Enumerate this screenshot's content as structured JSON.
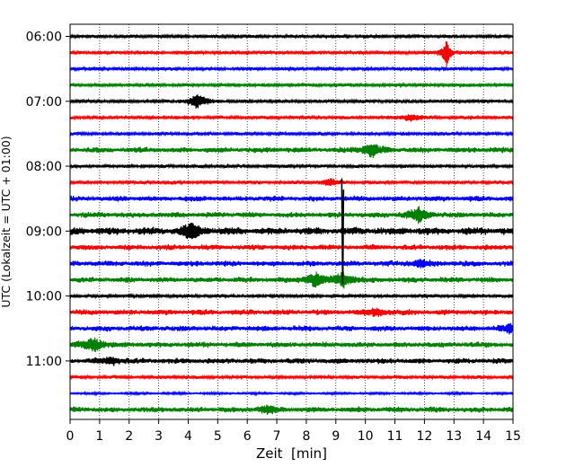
{
  "chart_data": {
    "type": "line",
    "title": "",
    "xlabel": "Zeit  [min]",
    "ylabel": "UTC (Lokalzeit = UTC + 01:00)",
    "xlim": [
      0,
      15
    ],
    "x_ticks": [
      "0",
      "1",
      "2",
      "3",
      "4",
      "5",
      "6",
      "7",
      "8",
      "9",
      "10",
      "11",
      "12",
      "13",
      "14",
      "15"
    ],
    "y_tick_labels": [
      "06:00",
      "07:00",
      "08:00",
      "09:00",
      "10:00",
      "11:00"
    ],
    "vertical_grid": true,
    "grid_style": "dotted",
    "trace_colors": [
      "#000000",
      "#ff0000",
      "#0000ff",
      "#008000"
    ],
    "traces": [
      {
        "start": "06:00",
        "color": "#000000",
        "activity": "low"
      },
      {
        "start": "06:15",
        "color": "#ff0000",
        "activity": "low",
        "events": [
          {
            "minute": 12.75,
            "amplitude": "large"
          }
        ]
      },
      {
        "start": "06:30",
        "color": "#0000ff",
        "activity": "low"
      },
      {
        "start": "06:45",
        "color": "#008000",
        "activity": "low"
      },
      {
        "start": "07:00",
        "color": "#000000",
        "activity": "low",
        "events": [
          {
            "minute": 4.3,
            "amplitude": "medium"
          }
        ]
      },
      {
        "start": "07:15",
        "color": "#ff0000",
        "activity": "low",
        "events": [
          {
            "minute": 11.5,
            "amplitude": "small"
          }
        ]
      },
      {
        "start": "07:30",
        "color": "#0000ff",
        "activity": "low"
      },
      {
        "start": "07:45",
        "color": "#008000",
        "activity": "medium",
        "events": [
          {
            "minute": 10.2,
            "amplitude": "medium"
          }
        ]
      },
      {
        "start": "08:00",
        "color": "#000000",
        "activity": "low"
      },
      {
        "start": "08:15",
        "color": "#ff0000",
        "activity": "low",
        "events": [
          {
            "minute": 8.8,
            "amplitude": "small"
          }
        ]
      },
      {
        "start": "08:30",
        "color": "#0000ff",
        "activity": "medium"
      },
      {
        "start": "08:45",
        "color": "#008000",
        "activity": "medium",
        "events": [
          {
            "minute": 11.8,
            "amplitude": "medium"
          }
        ]
      },
      {
        "start": "09:00",
        "color": "#000000",
        "activity": "high",
        "events": [
          {
            "minute": 4.1,
            "amplitude": "medium"
          }
        ]
      },
      {
        "start": "09:15",
        "color": "#ff0000",
        "activity": "medium"
      },
      {
        "start": "09:30",
        "color": "#0000ff",
        "activity": "medium",
        "events": [
          {
            "minute": 11.8,
            "amplitude": "small"
          }
        ]
      },
      {
        "start": "09:45",
        "color": "#008000",
        "activity": "medium",
        "events": [
          {
            "minute": 8.3,
            "amplitude": "medium"
          },
          {
            "minute": 9.25,
            "amplitude": "medium"
          }
        ]
      },
      {
        "start": "10:00",
        "color": "#000000",
        "activity": "low"
      },
      {
        "start": "10:15",
        "color": "#ff0000",
        "activity": "medium",
        "events": [
          {
            "minute": 10.4,
            "amplitude": "small"
          }
        ]
      },
      {
        "start": "10:30",
        "color": "#0000ff",
        "activity": "medium",
        "events": [
          {
            "minute": 14.9,
            "amplitude": "small"
          }
        ]
      },
      {
        "start": "10:45",
        "color": "#008000",
        "activity": "medium",
        "events": [
          {
            "minute": 0.8,
            "amplitude": "medium"
          }
        ]
      },
      {
        "start": "11:00",
        "color": "#000000",
        "activity": "medium",
        "events": [
          {
            "minute": 1.45,
            "amplitude": "small"
          }
        ]
      },
      {
        "start": "11:15",
        "color": "#ff0000",
        "activity": "low"
      },
      {
        "start": "11:30",
        "color": "#0000ff",
        "activity": "very-low"
      },
      {
        "start": "11:45",
        "color": "#008000",
        "activity": "medium",
        "events": [
          {
            "minute": 6.7,
            "amplitude": "small"
          }
        ]
      }
    ],
    "spike": {
      "minute": 9.2,
      "from": "08:15",
      "to": "09:45",
      "color": "#000000"
    }
  }
}
